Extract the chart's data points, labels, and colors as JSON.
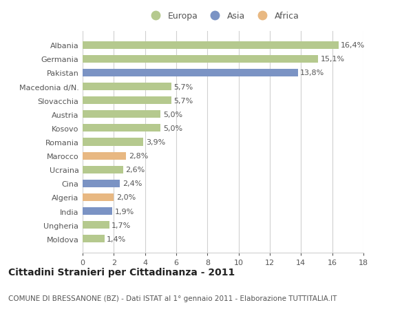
{
  "countries": [
    "Moldova",
    "Ungheria",
    "India",
    "Algeria",
    "Cina",
    "Ucraina",
    "Marocco",
    "Romania",
    "Kosovo",
    "Austria",
    "Slovacchia",
    "Macedonia d/N.",
    "Pakistan",
    "Germania",
    "Albania"
  ],
  "values": [
    1.4,
    1.7,
    1.9,
    2.0,
    2.4,
    2.6,
    2.8,
    3.9,
    5.0,
    5.0,
    5.7,
    5.7,
    13.8,
    15.1,
    16.4
  ],
  "labels": [
    "1,4%",
    "1,7%",
    "1,9%",
    "2,0%",
    "2,4%",
    "2,6%",
    "2,8%",
    "3,9%",
    "5,0%",
    "5,0%",
    "5,7%",
    "5,7%",
    "13,8%",
    "15,1%",
    "16,4%"
  ],
  "categories": [
    "Europa",
    "Europa",
    "Asia",
    "Africa",
    "Asia",
    "Europa",
    "Africa",
    "Europa",
    "Europa",
    "Europa",
    "Europa",
    "Europa",
    "Asia",
    "Europa",
    "Europa"
  ],
  "colors": {
    "Europa": "#b5c98e",
    "Asia": "#7b93c4",
    "Africa": "#e8b882"
  },
  "title": "Cittadini Stranieri per Cittadinanza - 2011",
  "subtitle": "COMUNE DI BRESSANONE (BZ) - Dati ISTAT al 1° gennaio 2011 - Elaborazione TUTTITALIA.IT",
  "xlim": [
    0,
    18
  ],
  "xticks": [
    0,
    2,
    4,
    6,
    8,
    10,
    12,
    14,
    16,
    18
  ],
  "background_color": "#ffffff",
  "grid_color": "#d0d0d0",
  "bar_height": 0.55,
  "label_fontsize": 8,
  "tick_fontsize": 8,
  "title_fontsize": 10,
  "subtitle_fontsize": 7.5,
  "text_color": "#555555"
}
